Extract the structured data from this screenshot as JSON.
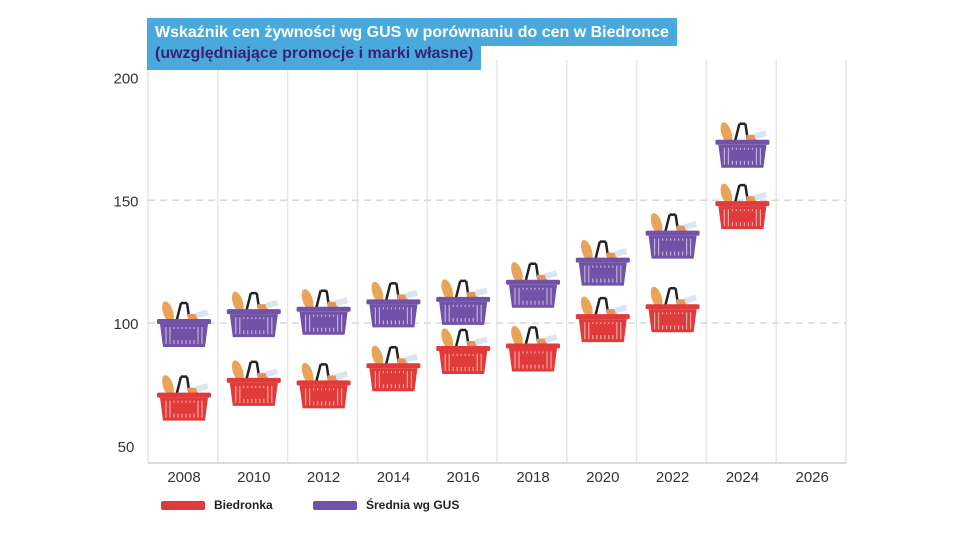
{
  "chart_data": {
    "type": "scatter",
    "title": "Wskaźnik cen żywności wg GUS w porównaniu do cen w Biedronce",
    "subtitle": "(uwzględniające promocje i marki własne)",
    "xlabel": "",
    "ylabel": "",
    "xlim": [
      2007,
      2027
    ],
    "ylim": [
      45,
      205
    ],
    "x_ticks": [
      "2008",
      "2010",
      "2012",
      "2014",
      "2016",
      "2018",
      "2020",
      "2022",
      "2024",
      "2026"
    ],
    "y_ticks": [
      "50",
      "100",
      "150",
      "200"
    ],
    "x": [
      2008,
      2010,
      2012,
      2014,
      2016,
      2018,
      2020,
      2022,
      2024
    ],
    "series": [
      {
        "name": "Biedronka",
        "color": "#e03a3a",
        "values": [
          70,
          76,
          75,
          82,
          89,
          90,
          102,
          106,
          148
        ]
      },
      {
        "name": "Średnia wg GUS",
        "color": "#7152a8",
        "values": [
          100,
          104,
          105,
          108,
          109,
          116,
          125,
          136,
          173
        ]
      }
    ],
    "marker": "shopping-basket",
    "legend": "bottom-left",
    "grid": "horizontal dashed at 100 and 150, vertical separators"
  }
}
